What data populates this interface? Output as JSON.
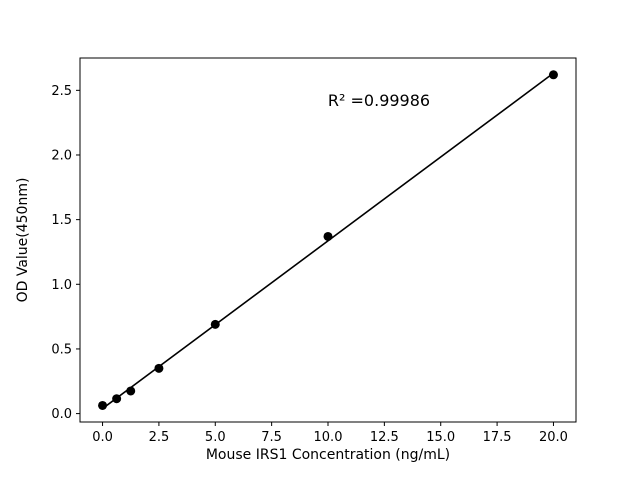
{
  "figure": {
    "background": "#ffffff"
  },
  "chart_data": {
    "type": "scatter",
    "title": "",
    "xlabel": "Mouse IRS1 Concentration (ng/mL)",
    "ylabel": "OD Value(450nm)",
    "annotation": "R² =0.99986",
    "r_squared": 0.99986,
    "x": [
      0,
      0.625,
      1.25,
      2.5,
      5,
      10,
      20
    ],
    "y": [
      0.063,
      0.115,
      0.175,
      0.35,
      0.69,
      1.37,
      2.62
    ],
    "fit_line": {
      "slope": 0.1297,
      "intercept": 0.039,
      "x_start": 0,
      "x_end": 20
    },
    "xticks": [
      0.0,
      2.5,
      5.0,
      7.5,
      10.0,
      12.5,
      15.0,
      17.5,
      20.0
    ],
    "yticks": [
      0.0,
      0.5,
      1.0,
      1.5,
      2.0,
      2.5
    ],
    "xlim": [
      -1,
      21
    ],
    "ylim": [
      -0.065,
      2.75
    ],
    "grid": false,
    "legend": null,
    "point_color": "#000000",
    "line_color": "#000000"
  }
}
